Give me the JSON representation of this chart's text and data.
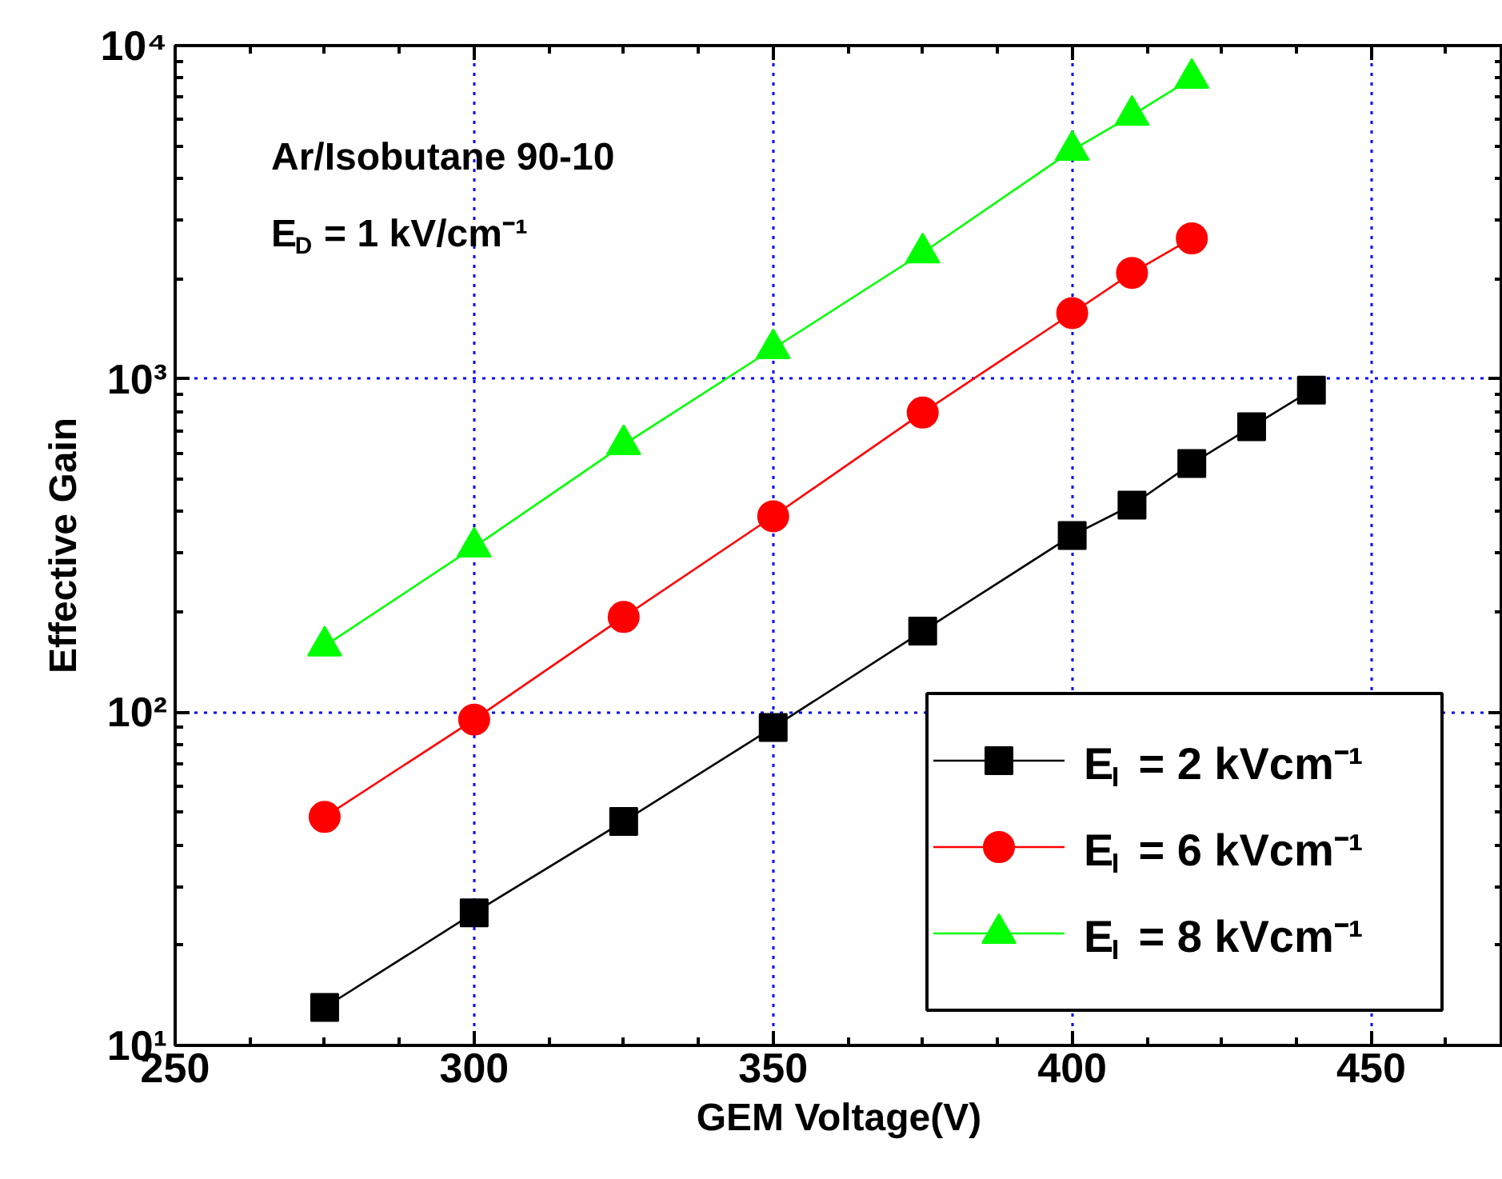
{
  "chart_data": {
    "type": "line",
    "xlabel": "GEM Voltage(V)",
    "ylabel": "Effective Gain",
    "annotations": [
      "Ar/Isobutane 90-10",
      "E$_{D}$ = 1 kV/cm⁻¹"
    ],
    "xlim": [
      250,
      472
    ],
    "xticks": [
      250,
      300,
      350,
      400,
      450
    ],
    "ylim": [
      10,
      10000
    ],
    "yticks": [
      {
        "value": 10,
        "label": "10¹"
      },
      {
        "value": 100,
        "label": "10²"
      },
      {
        "value": 1000,
        "label": "10³"
      },
      {
        "value": 10000,
        "label": "10⁴"
      }
    ],
    "log": "y",
    "grid": true,
    "legend": "bottom right",
    "line_style": "solid",
    "series": [
      {
        "name": "E$_{I}$ = 2 kVcm⁻¹",
        "color": "#000000",
        "marker": "square",
        "x": [
          275,
          300,
          325,
          350,
          375,
          400,
          410,
          420,
          430,
          440
        ],
        "values": [
          13,
          25,
          47,
          90,
          175,
          339,
          418,
          557,
          718,
          925
        ]
      },
      {
        "name": "E$_{I}$ = 6 kVcm⁻¹",
        "color": "#ff0000",
        "marker": "circle",
        "x": [
          275,
          300,
          325,
          350,
          375,
          400,
          410,
          420
        ],
        "values": [
          48.5,
          95,
          193,
          387,
          792,
          1575,
          2080,
          2640
        ]
      },
      {
        "name": "E$_{I}$ = 8 kVcm⁻¹",
        "color": "#00ff00",
        "marker": "triangle",
        "x": [
          275,
          300,
          325,
          350,
          375,
          400,
          410,
          420
        ],
        "values": [
          158,
          313,
          635,
          1233,
          2390,
          4850,
          6180,
          7980
        ]
      }
    ]
  }
}
